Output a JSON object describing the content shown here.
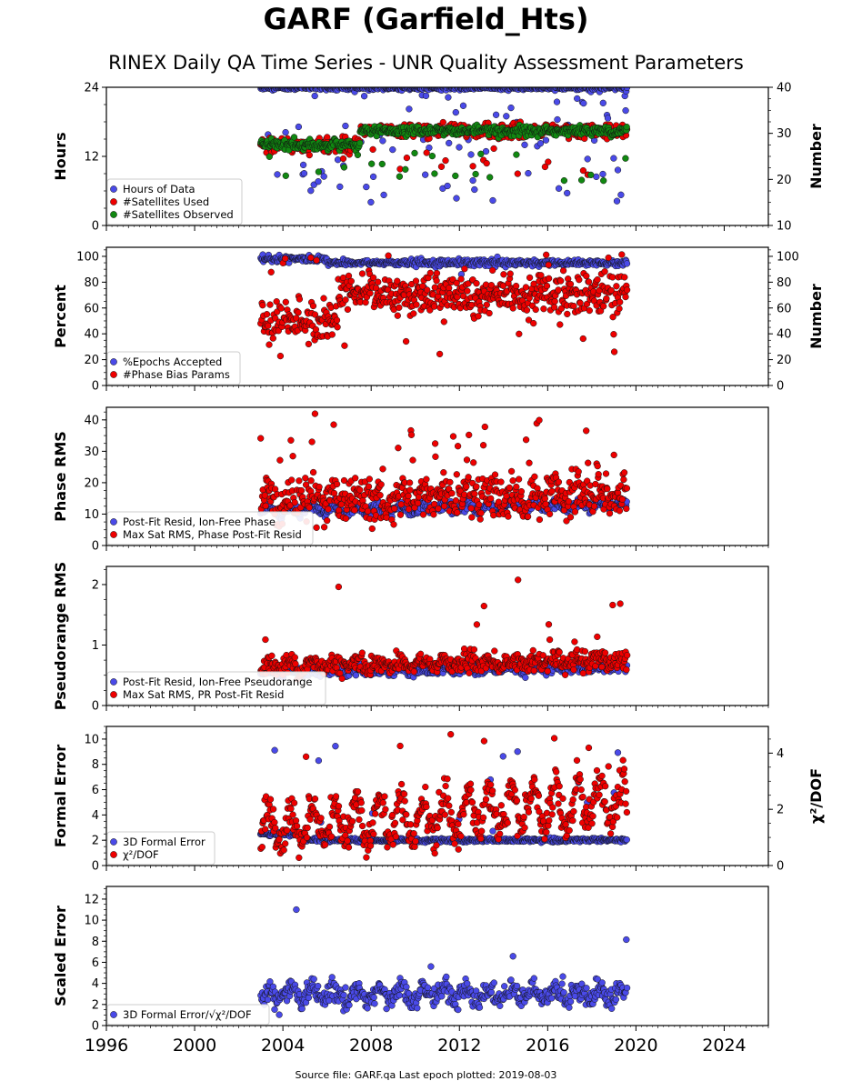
{
  "title": "GARF (Garfield_Hts)",
  "subtitle": "RINEX Daily QA Time Series - UNR Quality Assessment Parameters",
  "footer": "Source file: GARF.qa Last epoch plotted: 2019-08-03",
  "colors": {
    "blue": "#4a4ae8",
    "red": "#ee0000",
    "green": "#118811",
    "edge": "#111111"
  },
  "chart_data": [
    {
      "type": "scatter",
      "ylabel": "Hours",
      "ylabel2": "Number",
      "xlim": [
        1996,
        2026
      ],
      "ylim": [
        0,
        24
      ],
      "yticks": [
        0,
        12,
        24
      ],
      "ylim2": [
        10,
        40
      ],
      "yticks2": [
        10,
        20,
        30,
        40
      ],
      "x_range": [
        2003.0,
        2019.59
      ],
      "series": [
        {
          "name": "Hours of Data",
          "color": "blue",
          "axis": "left",
          "baseline": 24.0,
          "noise": 0.2,
          "outlier_frac": 0.12,
          "outlier_min": 4.0,
          "outlier_max": 24.0
        },
        {
          "name": "#Satellites Used",
          "color": "red",
          "axis": "right",
          "start": 27.5,
          "end": 30.5,
          "step_year": 2007.5,
          "noise": 0.8,
          "outlier_frac": 0.04,
          "outlier_min": 21.0,
          "outlier_max": 27.0
        },
        {
          "name": "#Satellites Observed",
          "color": "green",
          "axis": "right",
          "start": 27.5,
          "end": 30.5,
          "step_year": 2007.5,
          "noise": 0.5,
          "outlier_frac": 0.03,
          "outlier_min": 19.0,
          "outlier_max": 26.0
        }
      ]
    },
    {
      "type": "scatter",
      "ylabel": "Percent",
      "ylabel2": "Number",
      "xlim": [
        1996,
        2026
      ],
      "ylim": [
        0,
        107
      ],
      "yticks": [
        0,
        20,
        40,
        60,
        80,
        100
      ],
      "ylim2": [
        0,
        107
      ],
      "yticks2": [
        0,
        20,
        40,
        60,
        80,
        100
      ],
      "x_range": [
        2003.0,
        2019.59
      ],
      "series": [
        {
          "name": "%Epochs Accepted",
          "color": "blue",
          "axis": "left",
          "start": 98.0,
          "end": 95.0,
          "step_year": 2006.0,
          "noise": 1.2,
          "outlier_frac": 0.01,
          "outlier_min": 70.0,
          "outlier_max": 92.0
        },
        {
          "name": "#Phase Bias Params",
          "color": "red",
          "axis": "right",
          "start": 50.0,
          "end": 70.0,
          "step_year": 2006.5,
          "noise": 8.0,
          "outlier_frac": 0.05,
          "outlier_min": 22.0,
          "outlier_max": 106.0
        }
      ]
    },
    {
      "type": "scatter",
      "ylabel": "Phase RMS",
      "xlim": [
        1996,
        2026
      ],
      "ylim": [
        0,
        44
      ],
      "yticks": [
        0,
        10,
        20,
        30,
        40
      ],
      "x_range": [
        2003.0,
        2019.59
      ],
      "series": [
        {
          "name": "Post-Fit Resid, Ion-Free Phase",
          "color": "blue",
          "axis": "left",
          "start": 11.0,
          "end": 13.0,
          "noise": 0.8,
          "seasonal": 1.0
        },
        {
          "name": "Max Sat RMS, Phase Post-Fit Resid",
          "color": "red",
          "axis": "left",
          "start": 14.0,
          "end": 17.0,
          "noise": 3.5,
          "seasonal": 2.0,
          "outlier_frac": 0.04,
          "outlier_min": 25.0,
          "outlier_max": 42.0
        }
      ]
    },
    {
      "type": "scatter",
      "ylabel": "Pseudorange RMS",
      "xlim": [
        1996,
        2026
      ],
      "ylim": [
        0,
        2.3
      ],
      "yticks": [
        0,
        1,
        2
      ],
      "x_range": [
        2003.0,
        2019.59
      ],
      "series": [
        {
          "name": "Post-Fit Resid, Ion-Free Pseudorange",
          "color": "blue",
          "axis": "left",
          "start": 0.55,
          "end": 0.62,
          "noise": 0.04,
          "seasonal": 0.03
        },
        {
          "name": "Max Sat RMS, PR Post-Fit Resid",
          "color": "red",
          "axis": "left",
          "start": 0.65,
          "end": 0.75,
          "noise": 0.08,
          "seasonal": 0.05,
          "outlier_frac": 0.02,
          "outlier_min": 1.0,
          "outlier_max": 2.2
        }
      ]
    },
    {
      "type": "scatter",
      "ylabel": "Formal Error",
      "ylabel2": "χ²/DOF",
      "xlim": [
        1996,
        2026
      ],
      "ylim": [
        0,
        11
      ],
      "yticks": [
        0,
        2,
        4,
        6,
        8,
        10
      ],
      "ylim2": [
        0,
        4.95
      ],
      "yticks2": [
        0,
        2,
        4
      ],
      "x_range": [
        2003.0,
        2019.59
      ],
      "series": [
        {
          "name": "3D Formal Error",
          "color": "blue",
          "axis": "left",
          "start": 2.5,
          "end": 2.0,
          "step_year": 2005.0,
          "noise": 0.08,
          "outlier_frac": 0.02,
          "outlier_min": 2.5,
          "outlier_max": 10.5
        },
        {
          "name": "χ²/DOF",
          "color": "red",
          "axis": "right",
          "start": 1.4,
          "end": 2.3,
          "noise": 0.35,
          "seasonal": 0.7,
          "outlier_frac": 0.01,
          "outlier_min": 3.5,
          "outlier_max": 4.7
        }
      ]
    },
    {
      "type": "scatter",
      "ylabel": "Scaled Error",
      "xlim": [
        1996,
        2026
      ],
      "ylim": [
        0,
        13.2
      ],
      "yticks": [
        0,
        2,
        4,
        6,
        8,
        10,
        12
      ],
      "xticks": [
        1996,
        2000,
        2004,
        2008,
        2012,
        2016,
        2020,
        2024
      ],
      "x_range": [
        2003.0,
        2019.59
      ],
      "series": [
        {
          "name": "3D Formal Error/√χ²/DOF",
          "color": "blue",
          "axis": "left",
          "start": 3.0,
          "end": 3.0,
          "noise": 0.5,
          "seasonal": 0.6,
          "outlier_frac": 0.02,
          "outlier_min": 4.5,
          "outlier_max": 12.7
        }
      ]
    }
  ]
}
